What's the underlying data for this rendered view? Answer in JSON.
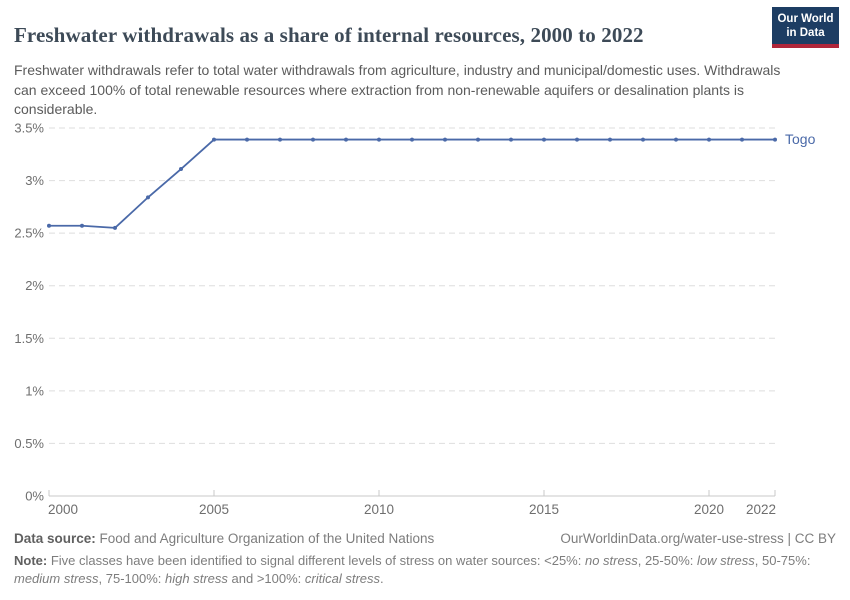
{
  "header": {
    "title": "Freshwater withdrawals as a share of internal resources, 2000 to 2022",
    "subtitle": "Freshwater withdrawals refer to total water withdrawals from agriculture, industry and municipal/domestic uses. Withdrawals can exceed 100% of total renewable resources where extraction from non-renewable aquifers or desalination plants is considerable.",
    "logo": {
      "line1": "Our World",
      "line2": "in Data",
      "bg_color": "#1d3d63",
      "bar_color": "#b0263a"
    }
  },
  "chart_data": {
    "type": "line",
    "title": "Freshwater withdrawals as a share of internal resources, 2000 to 2022",
    "x": [
      2000,
      2001,
      2002,
      2003,
      2004,
      2005,
      2006,
      2007,
      2008,
      2009,
      2010,
      2011,
      2012,
      2013,
      2014,
      2015,
      2016,
      2017,
      2018,
      2019,
      2020,
      2021,
      2022
    ],
    "series": [
      {
        "name": "Togo",
        "color": "#4a69a8",
        "values": [
          2.57,
          2.57,
          2.55,
          2.84,
          3.11,
          3.39,
          3.39,
          3.39,
          3.39,
          3.39,
          3.39,
          3.39,
          3.39,
          3.39,
          3.39,
          3.39,
          3.39,
          3.39,
          3.39,
          3.39,
          3.39,
          3.39,
          3.39
        ]
      }
    ],
    "xlim": [
      2000,
      2022
    ],
    "ylim": [
      0,
      3.5
    ],
    "x_ticks": [
      2000,
      2005,
      2010,
      2015,
      2020,
      2022
    ],
    "x_tick_labels": [
      "2000",
      "2005",
      "2010",
      "2015",
      "2020",
      "2022"
    ],
    "y_ticks": [
      0,
      0.5,
      1,
      1.5,
      2,
      2.5,
      3,
      3.5
    ],
    "y_tick_labels": [
      "0%",
      "0.5%",
      "1%",
      "1.5%",
      "2%",
      "2.5%",
      "3%",
      "3.5%"
    ],
    "grid": "horizontal-dashed",
    "legend_position": "end-of-line",
    "colors": {
      "gridline": "#dedede",
      "axis": "#c8c8c8",
      "tick_label": "#6e6e6e"
    }
  },
  "footer": {
    "datasource_label": "Data source:",
    "datasource_text": " Food and Agriculture Organization of the United Nations",
    "attribution": "OurWorldinData.org/water-use-stress | CC BY",
    "note_label": "Note:",
    "note_segments": [
      {
        "text": " Five classes have been identified to signal different levels of stress on water sources: <25%: ",
        "italic": false
      },
      {
        "text": "no stress",
        "italic": true
      },
      {
        "text": ", 25-50%: ",
        "italic": false
      },
      {
        "text": "low stress",
        "italic": true
      },
      {
        "text": ", 50-75%: ",
        "italic": false
      },
      {
        "text": "medium stress",
        "italic": true
      },
      {
        "text": ", 75-100%: ",
        "italic": false
      },
      {
        "text": "high stress",
        "italic": true
      },
      {
        "text": " and >100%: ",
        "italic": false
      },
      {
        "text": "critical stress",
        "italic": true
      },
      {
        "text": ".",
        "italic": false
      }
    ]
  }
}
